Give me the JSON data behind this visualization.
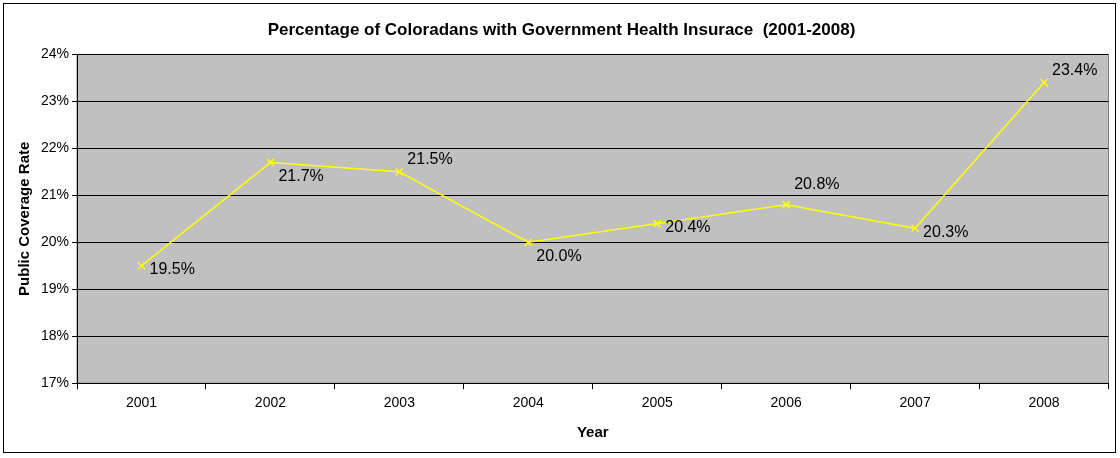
{
  "chart_data": {
    "type": "line",
    "title": "Percentage of Coloradans with Government Health Insurace  (2001-2008)",
    "xlabel": "Year",
    "ylabel": "Public Coverage Rate",
    "categories": [
      "2001",
      "2002",
      "2003",
      "2004",
      "2005",
      "2006",
      "2007",
      "2008"
    ],
    "values": [
      19.5,
      21.7,
      21.5,
      20.0,
      20.4,
      20.8,
      20.3,
      23.4
    ],
    "value_labels": [
      "19.5%",
      "21.7%",
      "21.5%",
      "20.0%",
      "20.4%",
      "20.8%",
      "20.3%",
      "23.4%"
    ],
    "color": "#ffff00",
    "ylim": [
      17,
      24
    ],
    "yticks": [
      {
        "value": 17,
        "label": "17%"
      },
      {
        "value": 18,
        "label": "18%"
      },
      {
        "value": 19,
        "label": "19%"
      },
      {
        "value": 20,
        "label": "20%"
      },
      {
        "value": 21,
        "label": "21%"
      },
      {
        "value": 22,
        "label": "22%"
      },
      {
        "value": 23,
        "label": "23%"
      },
      {
        "value": 24,
        "label": "24%"
      }
    ],
    "grid": "y",
    "marker": "cross",
    "legend": false
  }
}
